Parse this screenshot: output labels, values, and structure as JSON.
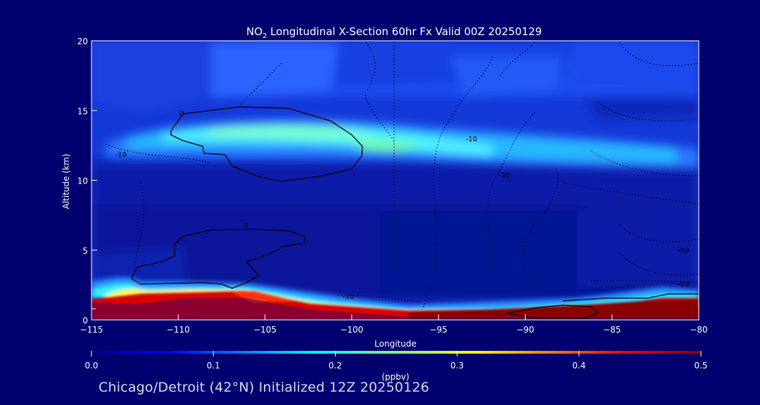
{
  "chart_data": {
    "type": "heatmap",
    "title_main": "NO",
    "title_sub": "2",
    "title_rest": " Longitudinal X-Section 60hr  Fx Valid 00Z 20250129",
    "xlabel": "Longitude",
    "ylabel": "Altitude (km)",
    "xlim": [
      -115,
      -80
    ],
    "ylim": [
      0,
      20
    ],
    "x_ticks": [
      -115,
      -110,
      -105,
      -100,
      -95,
      -90,
      -85,
      -80
    ],
    "y_ticks": [
      0,
      5,
      10,
      15,
      20
    ],
    "colorbar": {
      "ticks": [
        "0.0",
        "0.1",
        "0.2",
        "0.3",
        "0.4",
        "0.5"
      ],
      "label": "(ppbv)",
      "range": [
        0,
        0.5
      ],
      "colors": [
        "#00008f",
        "#0000ff",
        "#0080ff",
        "#00ffff",
        "#80ff80",
        "#ffff00",
        "#ff8000",
        "#ff0000",
        "#800000"
      ]
    },
    "fields": {
      "stratosphere_background_no2": 0.03,
      "upper_plume": {
        "lon": [
          -113,
          -95
        ],
        "alt_center_km": 12.5,
        "peak_no2": 0.24
      },
      "boundary_layer_peak": {
        "lon": [
          -96,
          -80
        ],
        "alt_km": [
          0,
          1.5
        ],
        "no2": 0.5
      }
    },
    "contour_labels": [
      {
        "text": "0",
        "lon": -109.8,
        "alt": 14.6
      },
      {
        "text": "-10",
        "lon": -113.3,
        "alt": 11.7
      },
      {
        "text": "-10",
        "lon": -93.1,
        "alt": 12.8
      },
      {
        "text": "-20",
        "lon": -91.2,
        "alt": 10.2
      },
      {
        "text": "0",
        "lon": -106.1,
        "alt": 6.6
      },
      {
        "text": "-90",
        "lon": -80.9,
        "alt": 4.8
      },
      {
        "text": "-10",
        "lon": -80.9,
        "alt": 2.4
      },
      {
        "text": "-10",
        "lon": -100.2,
        "alt": 1.5
      }
    ]
  },
  "caption": "Chicago/Detroit (42°N) Initialized 12Z 20250126"
}
